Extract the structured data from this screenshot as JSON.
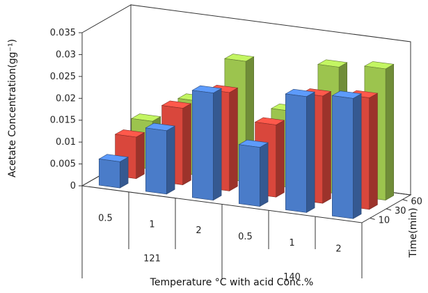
{
  "chart_data": {
    "type": "bar",
    "subtype": "3d-clustered-column",
    "title": "",
    "ylabel": "Acetate Concentration(gg⁻¹)",
    "xlabel": "Temperature °C with acid Conc.%",
    "zlabel": "Time(min)",
    "ylim": [
      0,
      0.035
    ],
    "y_ticks": [
      "0",
      "0.005",
      "0.01",
      "0.015",
      "0.02",
      "0.025",
      "0.03",
      "0.035"
    ],
    "categories": [
      "0.5",
      "1",
      "2",
      "0.5",
      "1",
      "2"
    ],
    "category_groups": [
      {
        "label": "121",
        "categories": [
          "0.5",
          "1",
          "2"
        ]
      },
      {
        "label": "140",
        "categories": [
          "0.5",
          "1",
          "2"
        ]
      }
    ],
    "depth_ticks": [
      "10",
      "30",
      "60"
    ],
    "series": [
      {
        "name": "10",
        "color": "#4a7cc9",
        "values": [
          0.006,
          0.0145,
          0.0245,
          0.0135,
          0.0265,
          0.0275
        ]
      },
      {
        "name": "30",
        "color": "#d9473c",
        "values": [
          0.0095,
          0.0175,
          0.0225,
          0.0165,
          0.0245,
          0.0255
        ]
      },
      {
        "name": "60",
        "color": "#9cc44e",
        "values": [
          0.011,
          0.017,
          0.0275,
          0.0175,
          0.029,
          0.03
        ]
      }
    ],
    "grid": false,
    "legend": "none"
  }
}
